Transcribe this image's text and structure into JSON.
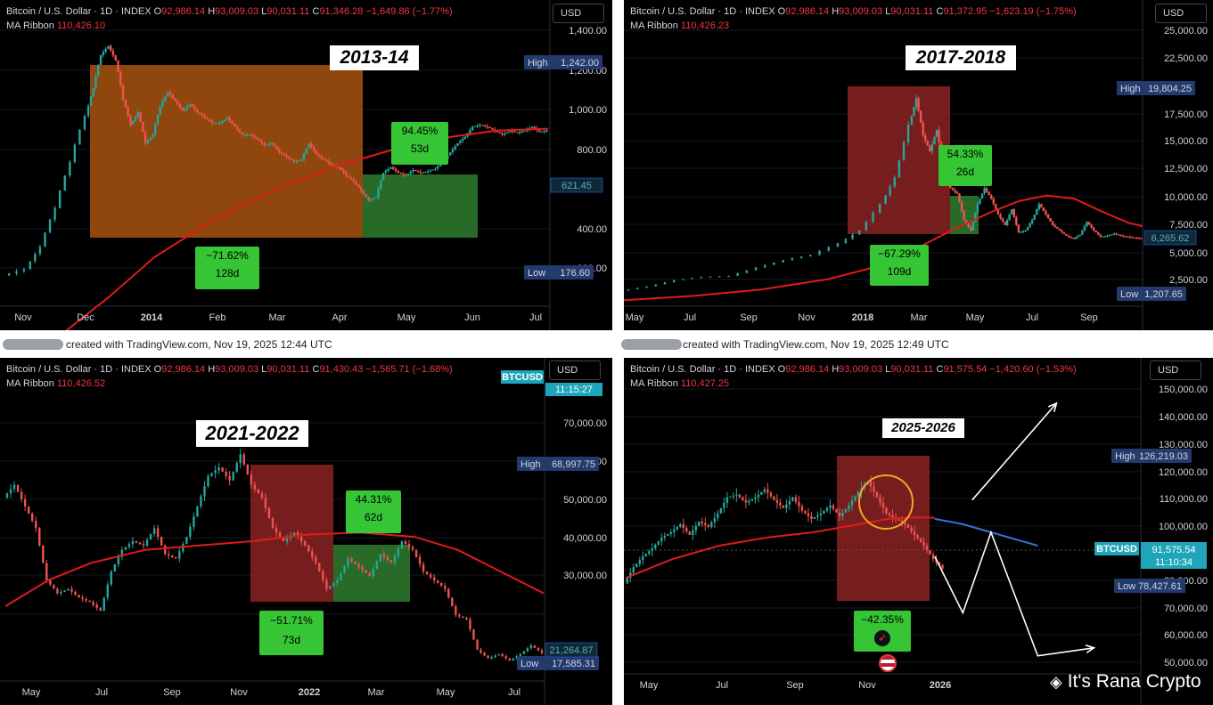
{
  "colors": {
    "background": "#000000",
    "up": "#26a69a",
    "down": "#ef5350",
    "ma": "#e01b1b",
    "red_zone": "#8b2323",
    "green_zone": "#2f7d2f",
    "orange_zone": "#a8530f",
    "label_box": "#35c535",
    "high_low_tag": "#233a6d",
    "price_tag": "#1e7a8c",
    "projection": "#ffffff",
    "projection_ma": "#3b6fd9"
  },
  "captions": [
    "created with TradingView.com, Nov 19, 2025 12:44 UTC",
    "created with TradingView.com, Nov 19, 2025 12:49 UTC"
  ],
  "watermark": "It's Rana Crypto",
  "chart_data": [
    {
      "type": "line",
      "year_label": "2013-14",
      "header": {
        "symbol": "Bitcoin / U.S. Dollar · 1D · INDEX",
        "o": "92,986.14",
        "h": "93,009.03",
        "l": "90,031.11",
        "c": "91,346.28",
        "change": "−1,649.86 (−1.77%)"
      },
      "ribbon": {
        "label": "MA Ribbon",
        "value": "110,426.10"
      },
      "currency": "USD",
      "x_ticks": [
        "Nov",
        "Dec",
        "2014",
        "Feb",
        "Mar",
        "Apr",
        "May",
        "Jun",
        "Jul"
      ],
      "y_ticks": [
        "1,400.00",
        "1,200.00",
        "1,000.00",
        "800.00",
        "400.00",
        "200.00"
      ],
      "high_tag": {
        "label": "High",
        "value": "1,242.00"
      },
      "low_tag": {
        "label": "Low",
        "value": "176.60"
      },
      "price_tag": "621.45",
      "drawdown": {
        "pct": "−71.62%",
        "days": "128d"
      },
      "recovery": {
        "pct": "94.45%",
        "days": "53d"
      },
      "price_path": [
        [
          0,
          190
        ],
        [
          3,
          200
        ],
        [
          5,
          240
        ],
        [
          7,
          330
        ],
        [
          9,
          480
        ],
        [
          11,
          700
        ],
        [
          12,
          880
        ],
        [
          13,
          1150
        ],
        [
          14,
          1240
        ],
        [
          15,
          1100
        ],
        [
          16,
          800
        ],
        [
          17,
          650
        ],
        [
          18,
          720
        ],
        [
          19,
          560
        ],
        [
          20,
          600
        ],
        [
          21,
          760
        ],
        [
          22,
          850
        ],
        [
          23,
          790
        ],
        [
          24,
          730
        ],
        [
          25,
          770
        ],
        [
          26,
          720
        ],
        [
          27,
          690
        ],
        [
          28,
          660
        ],
        [
          29,
          660
        ],
        [
          30,
          690
        ],
        [
          31,
          640
        ],
        [
          32,
          600
        ],
        [
          33,
          600
        ],
        [
          34,
          580
        ],
        [
          35,
          550
        ],
        [
          36,
          560
        ],
        [
          37,
          520
        ],
        [
          38,
          500
        ],
        [
          39,
          480
        ],
        [
          40,
          490
        ],
        [
          41,
          560
        ],
        [
          42,
          510
        ],
        [
          43,
          490
        ],
        [
          44,
          470
        ],
        [
          45,
          460
        ],
        [
          46,
          430
        ],
        [
          47,
          410
        ],
        [
          48,
          380
        ],
        [
          49,
          350
        ],
        [
          50,
          360
        ],
        [
          51,
          440
        ],
        [
          52,
          460
        ],
        [
          53,
          440
        ],
        [
          54,
          430
        ],
        [
          55,
          450
        ],
        [
          56,
          440
        ],
        [
          57,
          445
        ],
        [
          58,
          455
        ],
        [
          59,
          480
        ],
        [
          60,
          520
        ],
        [
          61,
          560
        ],
        [
          62,
          590
        ],
        [
          63,
          640
        ],
        [
          64,
          650
        ],
        [
          65,
          640
        ],
        [
          66,
          620
        ],
        [
          67,
          600
        ],
        [
          68,
          620
        ],
        [
          69,
          610
        ],
        [
          70,
          620
        ],
        [
          71,
          640
        ],
        [
          72,
          615
        ],
        [
          73,
          621
        ]
      ],
      "ma_path": [
        [
          0,
          100
        ],
        [
          8,
          120
        ],
        [
          14,
          160
        ],
        [
          20,
          220
        ],
        [
          28,
          300
        ],
        [
          36,
          380
        ],
        [
          44,
          460
        ],
        [
          52,
          530
        ],
        [
          60,
          590
        ],
        [
          66,
          620
        ],
        [
          73,
          630
        ]
      ]
    },
    {
      "type": "line",
      "year_label": "2017-2018",
      "header": {
        "symbol": "Bitcoin / U.S. Dollar · 1D · INDEX",
        "o": "92,986.14",
        "h": "93,009.03",
        "l": "90,031.11",
        "c": "91,372.95",
        "change": "−1,623.19 (−1.75%)"
      },
      "ribbon": {
        "label": "MA Ribbon",
        "value": "110,426.23"
      },
      "currency": "USD",
      "x_ticks": [
        "May",
        "Jul",
        "Sep",
        "Nov",
        "2018",
        "Mar",
        "May",
        "Jul",
        "Sep"
      ],
      "y_ticks": [
        "25,000.00",
        "22,500.00",
        "17,500.00",
        "15,000.00",
        "12,500.00",
        "10,000.00",
        "7,500.00",
        "5,000.00",
        "2,500.00"
      ],
      "high_tag": {
        "label": "High",
        "value": "19,804.25"
      },
      "low_tag": {
        "label": "Low",
        "value": "1,207.65"
      },
      "price_tag": "6,265.62",
      "drawdown": {
        "pct": "−67.29%",
        "days": "109d"
      },
      "recovery": {
        "pct": "54.33%",
        "days": "26d"
      },
      "price_path": [
        [
          0,
          1300
        ],
        [
          4,
          1700
        ],
        [
          8,
          2300
        ],
        [
          12,
          2600
        ],
        [
          16,
          2700
        ],
        [
          20,
          3500
        ],
        [
          24,
          4200
        ],
        [
          28,
          4700
        ],
        [
          32,
          5800
        ],
        [
          35,
          7000
        ],
        [
          38,
          9500
        ],
        [
          40,
          12000
        ],
        [
          42,
          17000
        ],
        [
          43,
          19500
        ],
        [
          44,
          16000
        ],
        [
          45,
          14500
        ],
        [
          46,
          16500
        ],
        [
          47,
          13000
        ],
        [
          48,
          11000
        ],
        [
          49,
          10500
        ],
        [
          50,
          8000
        ],
        [
          51,
          7000
        ],
        [
          52,
          9500
        ],
        [
          53,
          11000
        ],
        [
          54,
          10000
        ],
        [
          55,
          8500
        ],
        [
          56,
          7500
        ],
        [
          57,
          9000
        ],
        [
          58,
          6800
        ],
        [
          59,
          7000
        ],
        [
          60,
          8000
        ],
        [
          61,
          9500
        ],
        [
          62,
          8500
        ],
        [
          63,
          7500
        ],
        [
          64,
          7000
        ],
        [
          65,
          6500
        ],
        [
          66,
          6200
        ],
        [
          67,
          6600
        ],
        [
          68,
          7800
        ],
        [
          69,
          7000
        ],
        [
          70,
          6400
        ],
        [
          71,
          6500
        ],
        [
          72,
          6700
        ],
        [
          73,
          6500
        ],
        [
          74,
          6400
        ],
        [
          75,
          6300
        ],
        [
          76,
          6265
        ]
      ],
      "ma_path": [
        [
          0,
          400
        ],
        [
          10,
          800
        ],
        [
          20,
          1400
        ],
        [
          30,
          2400
        ],
        [
          36,
          3400
        ],
        [
          42,
          5000
        ],
        [
          48,
          7000
        ],
        [
          54,
          8800
        ],
        [
          58,
          9800
        ],
        [
          62,
          10300
        ],
        [
          66,
          10000
        ],
        [
          70,
          8800
        ],
        [
          74,
          7700
        ],
        [
          76,
          7400
        ]
      ]
    },
    {
      "type": "line",
      "year_label": "2021-2022",
      "header": {
        "symbol": "Bitcoin / U.S. Dollar · 1D · INDEX",
        "o": "92,986.14",
        "h": "93,009.03",
        "l": "90,031.11",
        "c": "91,430.43",
        "change": "−1,565.71 (−1.68%)"
      },
      "ribbon": {
        "label": "MA Ribbon",
        "value": "110,426.52"
      },
      "currency": "USD",
      "symbol_tag": {
        "name": "BTCUSD",
        "time": "11:15:27"
      },
      "x_ticks": [
        "May",
        "Jul",
        "Sep",
        "Nov",
        "2022",
        "Mar",
        "May",
        "Jul"
      ],
      "y_ticks": [
        "70,000.00",
        "60,000.00",
        "50,000.00",
        "40,000.00",
        "30,000.00"
      ],
      "high_tag": {
        "label": "High",
        "value": "68,997.75"
      },
      "low_tag": {
        "label": "Low",
        "value": "17,585.31"
      },
      "price_tag": "21,264.87",
      "drawdown": {
        "pct": "−51.71%",
        "days": "73d"
      },
      "recovery": {
        "pct": "44.31%",
        "days": "62d"
      },
      "price_path": [
        [
          0,
          57000
        ],
        [
          2,
          60000
        ],
        [
          4,
          55000
        ],
        [
          6,
          50000
        ],
        [
          8,
          38000
        ],
        [
          10,
          35000
        ],
        [
          12,
          36000
        ],
        [
          14,
          34000
        ],
        [
          16,
          33000
        ],
        [
          18,
          31000
        ],
        [
          20,
          40000
        ],
        [
          22,
          45000
        ],
        [
          24,
          47000
        ],
        [
          26,
          46000
        ],
        [
          28,
          50000
        ],
        [
          30,
          44000
        ],
        [
          32,
          43000
        ],
        [
          34,
          48000
        ],
        [
          36,
          55000
        ],
        [
          38,
          62000
        ],
        [
          40,
          64000
        ],
        [
          42,
          61000
        ],
        [
          44,
          67000
        ],
        [
          46,
          60000
        ],
        [
          48,
          57000
        ],
        [
          50,
          50000
        ],
        [
          52,
          47000
        ],
        [
          54,
          49000
        ],
        [
          56,
          46000
        ],
        [
          58,
          42000
        ],
        [
          60,
          36000
        ],
        [
          62,
          38000
        ],
        [
          64,
          43000
        ],
        [
          66,
          41000
        ],
        [
          68,
          39000
        ],
        [
          70,
          44000
        ],
        [
          72,
          42000
        ],
        [
          74,
          47000
        ],
        [
          76,
          45000
        ],
        [
          78,
          40000
        ],
        [
          80,
          38000
        ],
        [
          82,
          36000
        ],
        [
          84,
          30000
        ],
        [
          86,
          29000
        ],
        [
          88,
          22000
        ],
        [
          90,
          20000
        ],
        [
          92,
          21000
        ],
        [
          94,
          19500
        ],
        [
          96,
          21000
        ],
        [
          98,
          23000
        ],
        [
          100,
          21264
        ]
      ],
      "ma_path": [
        [
          0,
          32000
        ],
        [
          8,
          38000
        ],
        [
          16,
          42000
        ],
        [
          26,
          45000
        ],
        [
          36,
          46000
        ],
        [
          46,
          47000
        ],
        [
          56,
          48500
        ],
        [
          66,
          49000
        ],
        [
          76,
          48000
        ],
        [
          84,
          45000
        ],
        [
          92,
          40000
        ],
        [
          100,
          35000
        ]
      ]
    },
    {
      "type": "line",
      "year_label": "2025-2026",
      "header": {
        "symbol": "Bitcoin / U.S. Dollar · 1D · INDEX",
        "o": "92,986.14",
        "h": "93,009.03",
        "l": "90,031.11",
        "c": "91,575.54",
        "change": "−1,420.60 (−1.53%)"
      },
      "ribbon": {
        "label": "MA Ribbon",
        "value": "110,427.25"
      },
      "currency": "USD",
      "symbol_tag": {
        "name": "BTCUSD",
        "value": "91,575.54",
        "time": "11:10:34"
      },
      "x_ticks": [
        "May",
        "Jul",
        "Sep",
        "Nov",
        "2026"
      ],
      "y_ticks": [
        "150,000.00",
        "140,000.00",
        "130,000.00",
        "120,000.00",
        "110,000.00",
        "100,000.00",
        "80,000.00",
        "70,000.00",
        "60,000.00",
        "50,000.00"
      ],
      "high_tag": {
        "label": "High",
        "value": "126,219.03"
      },
      "low_tag": {
        "label": "Low",
        "value": "78,427.61"
      },
      "drawdown": {
        "pct": "−42.35%"
      },
      "price_path": [
        [
          0,
          86000
        ],
        [
          2,
          92000
        ],
        [
          4,
          96000
        ],
        [
          6,
          99000
        ],
        [
          8,
          103000
        ],
        [
          10,
          105000
        ],
        [
          12,
          108000
        ],
        [
          14,
          104000
        ],
        [
          16,
          109000
        ],
        [
          18,
          107000
        ],
        [
          20,
          112000
        ],
        [
          22,
          118000
        ],
        [
          24,
          119000
        ],
        [
          26,
          116000
        ],
        [
          28,
          118000
        ],
        [
          30,
          121000
        ],
        [
          32,
          117000
        ],
        [
          34,
          114000
        ],
        [
          36,
          118000
        ],
        [
          38,
          113000
        ],
        [
          40,
          110000
        ],
        [
          42,
          112000
        ],
        [
          44,
          115000
        ],
        [
          46,
          111000
        ],
        [
          48,
          115000
        ],
        [
          50,
          120000
        ],
        [
          52,
          124000
        ],
        [
          54,
          118000
        ],
        [
          56,
          112000
        ],
        [
          58,
          110000
        ],
        [
          60,
          108000
        ],
        [
          62,
          104000
        ],
        [
          64,
          100000
        ],
        [
          66,
          95000
        ],
        [
          68,
          91575
        ]
      ],
      "ma_path": [
        [
          0,
          88000
        ],
        [
          10,
          95000
        ],
        [
          20,
          100000
        ],
        [
          30,
          103000
        ],
        [
          40,
          105000
        ],
        [
          50,
          108000
        ],
        [
          56,
          110000
        ],
        [
          62,
          110500
        ],
        [
          66,
          110400
        ]
      ],
      "projection_ma": [
        [
          66,
          110000
        ],
        [
          72,
          108000
        ],
        [
          80,
          104000
        ],
        [
          88,
          100000
        ]
      ],
      "projection_paths": [
        [
          [
            66,
            96000
          ],
          [
            72,
            75000
          ],
          [
            78,
            105000
          ],
          [
            88,
            59000
          ],
          [
            100,
            62000
          ]
        ],
        [
          [
            74,
            117000
          ],
          [
            92,
            153000
          ]
        ]
      ],
      "projection_y_range": [
        50000,
        155000
      ]
    }
  ]
}
